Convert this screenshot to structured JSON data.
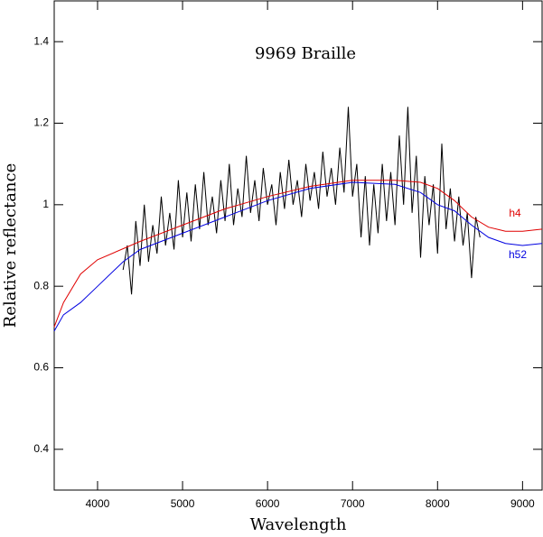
{
  "chart_data": {
    "type": "line",
    "title": "9969 Braille",
    "xlabel": "Wavelength",
    "ylabel": "Relative reflectance",
    "xlim": [
      3490,
      9230
    ],
    "ylim": [
      0.3,
      1.5
    ],
    "xticks": [
      4000,
      5000,
      6000,
      7000,
      8000,
      9000
    ],
    "yticks": [
      0.4,
      0.6,
      0.8,
      1,
      1.2,
      1.4
    ],
    "series": [
      {
        "color": "#000000",
        "x": [
          4300,
          4350,
          4400,
          4450,
          4500,
          4550,
          4600,
          4650,
          4700,
          4750,
          4800,
          4850,
          4900,
          4950,
          5000,
          5050,
          5100,
          5150,
          5200,
          5250,
          5300,
          5350,
          5400,
          5450,
          5500,
          5550,
          5600,
          5650,
          5700,
          5750,
          5800,
          5850,
          5900,
          5950,
          6000,
          6050,
          6100,
          6150,
          6200,
          6250,
          6300,
          6350,
          6400,
          6450,
          6500,
          6550,
          6600,
          6650,
          6700,
          6750,
          6800,
          6850,
          6900,
          6950,
          7000,
          7050,
          7100,
          7150,
          7200,
          7250,
          7300,
          7350,
          7400,
          7450,
          7500,
          7550,
          7600,
          7650,
          7700,
          7750,
          7800,
          7850,
          7900,
          7950,
          8000,
          8050,
          8100,
          8150,
          8200,
          8250,
          8300,
          8350,
          8400,
          8450,
          8500
        ],
        "values": [
          0.84,
          0.9,
          0.78,
          0.96,
          0.85,
          1.0,
          0.86,
          0.95,
          0.88,
          1.02,
          0.9,
          0.98,
          0.89,
          1.06,
          0.92,
          1.03,
          0.91,
          1.05,
          0.94,
          1.08,
          0.95,
          1.02,
          0.93,
          1.06,
          0.96,
          1.1,
          0.95,
          1.04,
          0.97,
          1.12,
          0.98,
          1.06,
          0.96,
          1.09,
          1.0,
          1.05,
          0.95,
          1.08,
          0.99,
          1.11,
          1.0,
          1.06,
          0.97,
          1.1,
          1.01,
          1.08,
          0.99,
          1.13,
          1.02,
          1.09,
          1.0,
          1.14,
          1.03,
          1.24,
          1.02,
          1.1,
          0.92,
          1.07,
          0.9,
          1.05,
          0.93,
          1.1,
          0.96,
          1.08,
          0.95,
          1.17,
          1.0,
          1.24,
          0.98,
          1.12,
          0.87,
          1.07,
          0.95,
          1.05,
          0.88,
          1.15,
          0.94,
          1.04,
          0.91,
          1.02,
          0.9,
          0.98,
          0.82,
          0.97,
          0.92
        ]
      },
      {
        "name": "h4",
        "color": "#e00000",
        "x": [
          3490,
          3600,
          3800,
          4000,
          4500,
          5000,
          5500,
          6000,
          6500,
          7000,
          7500,
          7800,
          8000,
          8200,
          8400,
          8600,
          8800,
          9000,
          9230
        ],
        "values": [
          0.7,
          0.76,
          0.83,
          0.865,
          0.91,
          0.95,
          0.99,
          1.02,
          1.045,
          1.06,
          1.06,
          1.055,
          1.04,
          1.01,
          0.97,
          0.945,
          0.935,
          0.935,
          0.94
        ]
      },
      {
        "name": "h52",
        "color": "#0000e0",
        "x": [
          3490,
          3600,
          3800,
          4000,
          4300,
          4500,
          5000,
          5500,
          6000,
          6500,
          7000,
          7500,
          7800,
          8000,
          8200,
          8400,
          8600,
          8800,
          9000,
          9230
        ],
        "values": [
          0.69,
          0.73,
          0.76,
          0.8,
          0.86,
          0.89,
          0.93,
          0.97,
          1.01,
          1.04,
          1.055,
          1.05,
          1.03,
          1.0,
          0.985,
          0.95,
          0.92,
          0.905,
          0.9,
          0.905
        ]
      }
    ]
  }
}
